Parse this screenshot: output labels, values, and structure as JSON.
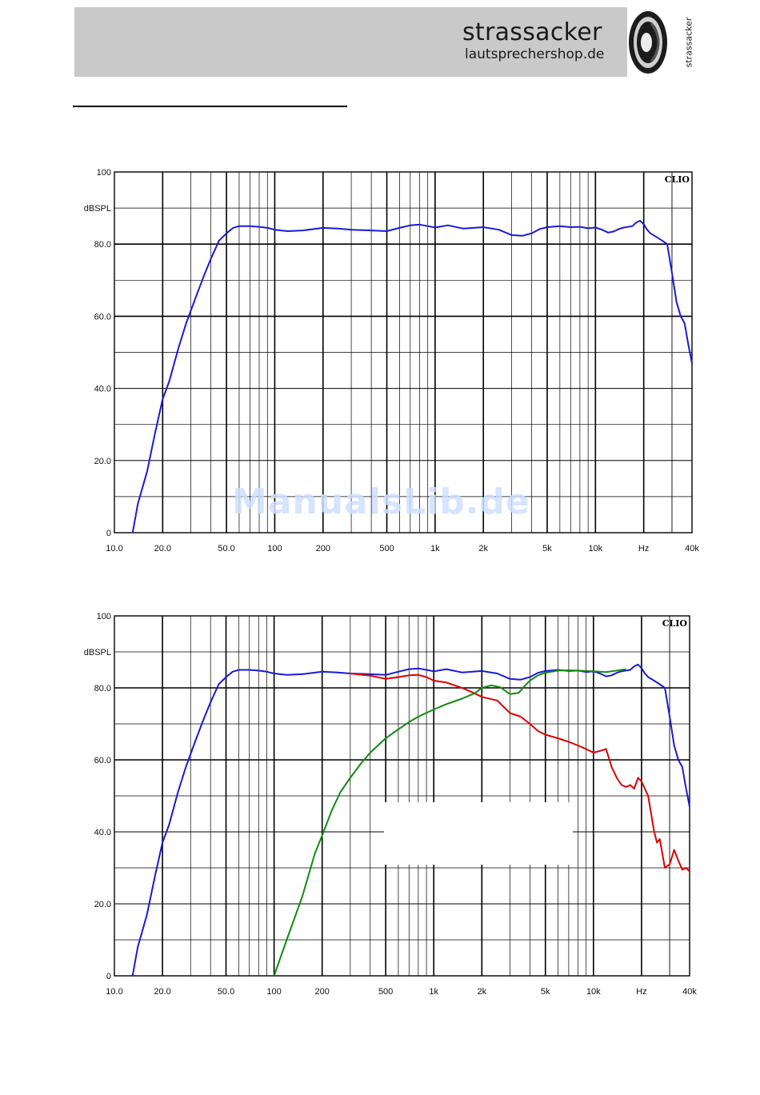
{
  "header": {
    "brand": "strassacker",
    "shop": "lautsprechershop.de",
    "vertical_brand": "strassacker",
    "logo_icon": "speaker-icon"
  },
  "watermark": "ManualsLib.de",
  "chart_data": [
    {
      "type": "line",
      "title": "",
      "xscale": "log",
      "xlim": [
        10,
        40000
      ],
      "ylim": [
        0,
        100
      ],
      "ylabel": "dBSPL",
      "logo": "CLIO",
      "x_ticks": [
        10,
        20,
        50,
        100,
        200,
        500,
        1000,
        2000,
        5000,
        10000,
        20000,
        40000
      ],
      "x_tick_labels": [
        "10.0",
        "20.0",
        "50.0",
        "100",
        "200",
        "500",
        "1k",
        "2k",
        "5k",
        "10k",
        "Hz",
        "40k"
      ],
      "y_ticks": [
        0,
        20,
        40,
        60,
        80,
        100
      ],
      "y_tick_labels": [
        "0",
        "20.0",
        "40.0",
        "60.0",
        "80.0",
        "100"
      ],
      "grid": true,
      "series": [
        {
          "color": "#1a1ad6",
          "x": [
            13,
            14,
            16,
            18,
            20,
            22,
            25,
            28,
            32,
            36,
            40,
            45,
            50,
            55,
            60,
            70,
            80,
            90,
            100,
            120,
            150,
            200,
            250,
            300,
            400,
            500,
            600,
            700,
            800,
            900,
            1000,
            1200,
            1500,
            2000,
            2500,
            3000,
            3500,
            4000,
            4500,
            5000,
            6000,
            7000,
            8000,
            9000,
            10000,
            11000,
            12000,
            13000,
            14000,
            15000,
            17000,
            18000,
            19000,
            20000,
            21000,
            22000,
            24000,
            26000,
            28000,
            30000,
            32000,
            34000,
            36000,
            38000,
            40000
          ],
          "y": [
            0,
            8,
            17,
            28,
            37,
            42,
            51,
            58,
            65,
            71,
            76,
            81,
            83,
            84.5,
            85,
            85,
            84.8,
            84.5,
            84,
            83.6,
            83.8,
            84.5,
            84.3,
            84,
            83.8,
            83.6,
            84.5,
            85.2,
            85.4,
            85,
            84.6,
            85.2,
            84.3,
            84.7,
            84,
            82.5,
            82.3,
            83,
            84.2,
            84.7,
            85,
            84.7,
            84.8,
            84.4,
            84.6,
            84,
            83.2,
            83.5,
            84.2,
            84.6,
            85,
            86,
            86.5,
            85.5,
            84,
            83,
            82,
            81,
            80,
            72,
            64,
            60,
            58,
            52,
            47
          ]
        }
      ]
    },
    {
      "type": "line",
      "title": "",
      "xscale": "log",
      "xlim": [
        10,
        40000
      ],
      "ylim": [
        0,
        100
      ],
      "ylabel": "dBSPL",
      "logo": "CLIO",
      "x_ticks": [
        10,
        20,
        50,
        100,
        200,
        500,
        1000,
        2000,
        5000,
        10000,
        20000,
        40000
      ],
      "x_tick_labels": [
        "10.0",
        "20.0",
        "50.0",
        "100",
        "200",
        "500",
        "1k",
        "2k",
        "5k",
        "10k",
        "Hz",
        "40k"
      ],
      "y_ticks": [
        0,
        20,
        40,
        60,
        80,
        100
      ],
      "y_tick_labels": [
        "0",
        "20.0",
        "40.0",
        "60.0",
        "80.0",
        "100"
      ],
      "grid": true,
      "series": [
        {
          "color": "#1a1ad6",
          "x": [
            13,
            14,
            16,
            18,
            20,
            22,
            25,
            28,
            32,
            36,
            40,
            45,
            50,
            55,
            60,
            70,
            80,
            90,
            100,
            120,
            150,
            200,
            250,
            300,
            400,
            500,
            600,
            700,
            800,
            900,
            1000,
            1200,
            1500,
            2000,
            2500,
            3000,
            3500,
            4000,
            4500,
            5000,
            6000,
            7000,
            8000,
            9000,
            10000,
            11000,
            12000,
            13000,
            14000,
            15000,
            17000,
            18000,
            19000,
            20000,
            21000,
            22000,
            24000,
            26000,
            28000,
            30000,
            32000,
            34000,
            36000,
            38000,
            40000
          ],
          "y": [
            0,
            8,
            17,
            28,
            37,
            42,
            51,
            58,
            65,
            71,
            76,
            81,
            83,
            84.5,
            85,
            85,
            84.8,
            84.5,
            84,
            83.6,
            83.8,
            84.5,
            84.3,
            84,
            83.8,
            83.6,
            84.5,
            85.2,
            85.4,
            85,
            84.6,
            85.2,
            84.3,
            84.7,
            84,
            82.5,
            82.3,
            83,
            84.2,
            84.7,
            85,
            84.7,
            84.8,
            84.4,
            84.6,
            84,
            83.2,
            83.5,
            84.2,
            84.6,
            85,
            86,
            86.5,
            85.5,
            84,
            83,
            82,
            81,
            80,
            72,
            64,
            60,
            58,
            52,
            47
          ]
        },
        {
          "color": "#dd0000",
          "x": [
            300,
            400,
            500,
            600,
            700,
            800,
            900,
            1000,
            1200,
            1500,
            1800,
            2000,
            2500,
            3000,
            3500,
            4000,
            4500,
            5000,
            6000,
            7000,
            8000,
            9000,
            10000,
            11000,
            12000,
            13000,
            14000,
            15000,
            16000,
            17000,
            18000,
            19000,
            20000,
            21000,
            22000,
            24000,
            25000,
            26000,
            27000,
            28000,
            30000,
            32000,
            34000,
            36000,
            38000,
            40000
          ],
          "y": [
            84,
            83.4,
            82.5,
            83,
            83.5,
            83.6,
            83,
            82,
            81.5,
            80,
            78.5,
            77.5,
            76.5,
            73,
            72,
            70,
            68,
            67,
            66,
            65,
            64,
            63,
            62,
            62.5,
            63,
            58,
            55,
            53,
            52.5,
            53,
            52,
            55,
            54,
            52,
            50,
            40,
            37,
            38,
            34,
            30,
            31,
            35,
            32,
            29.5,
            30,
            29
          ]
        },
        {
          "color": "#138a13",
          "x": [
            100,
            120,
            150,
            180,
            200,
            230,
            260,
            300,
            350,
            400,
            500,
            600,
            700,
            800,
            1000,
            1200,
            1500,
            1800,
            2000,
            2300,
            2600,
            3000,
            3400,
            3700,
            4000,
            4500,
            5000,
            6000,
            7000,
            8000,
            9000,
            10000,
            12000,
            14000,
            16000
          ],
          "y": [
            0,
            10,
            22,
            34,
            39,
            46,
            51,
            55,
            59,
            62,
            66,
            68.5,
            70.5,
            72,
            74,
            75.5,
            77,
            78.5,
            80,
            80.7,
            80.2,
            78.3,
            78.6,
            80.5,
            82,
            83.5,
            84.2,
            84.8,
            84.9,
            84.8,
            84.7,
            84.6,
            84.4,
            84.8,
            85.2
          ]
        }
      ]
    }
  ]
}
